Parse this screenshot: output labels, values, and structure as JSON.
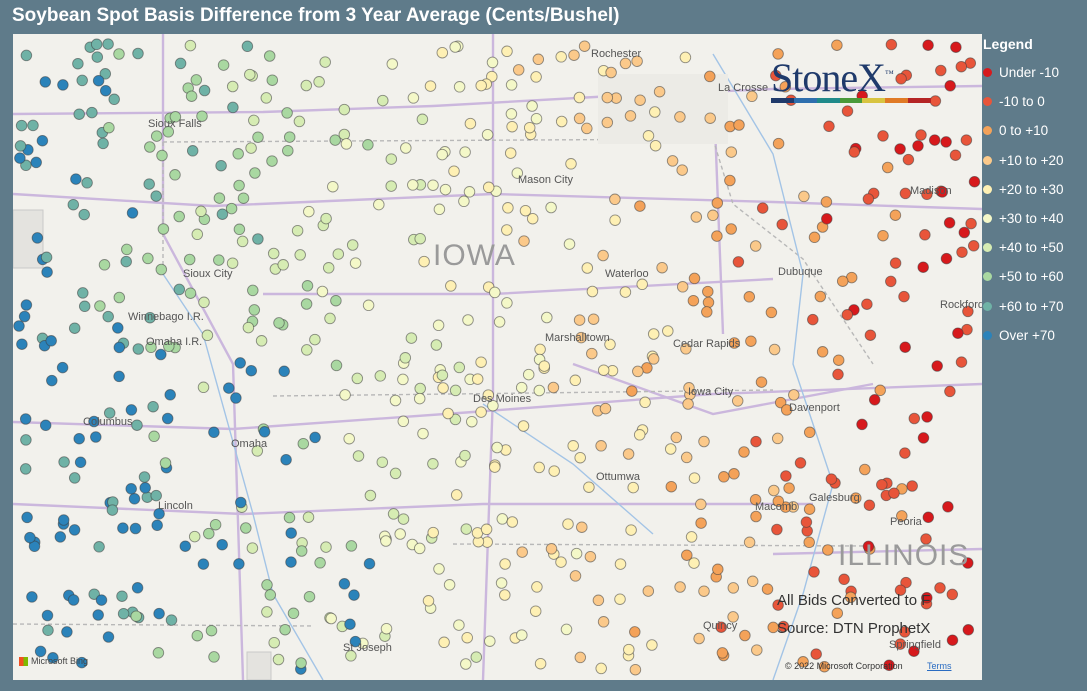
{
  "title": "Soybean Spot Basis Difference from 3 Year Average (Cents/Bushel)",
  "legend": {
    "title": "Legend",
    "items": [
      {
        "label": "Under -10",
        "color": "#d7191c"
      },
      {
        "label": "-10 to 0",
        "color": "#e8553a"
      },
      {
        "label": "0 to +10",
        "color": "#f4a259"
      },
      {
        "label": "+10 to +20",
        "color": "#fbc98a"
      },
      {
        "label": "+20 to +30",
        "color": "#fef0b4"
      },
      {
        "label": "+30 to +40",
        "color": "#f4f8c8"
      },
      {
        "label": "+40 to +50",
        "color": "#d6ecb3"
      },
      {
        "label": "+50 to +60",
        "color": "#a9d8a1"
      },
      {
        "label": "+60 to +70",
        "color": "#6fb2a6"
      },
      {
        "label": "Over +70",
        "color": "#2b83ba"
      }
    ]
  },
  "logo": {
    "text": "StoneX",
    "tm": "™",
    "bar_colors": [
      "#1f3a6b",
      "#2e6fae",
      "#1f8a8a",
      "#4a9a3a",
      "#d8c440",
      "#e07a25",
      "#b52525"
    ]
  },
  "map": {
    "state_labels": [
      "IOWA",
      "ILLINOIS"
    ],
    "city_labels": [
      "Rochester",
      "La Crosse",
      "Sioux Falls",
      "Mason City",
      "Madison",
      "Waterloo",
      "Dubuque",
      "Sioux City",
      "Rockford",
      "Winnebago I.R.",
      "Omaha I.R.",
      "Marshalltown",
      "Cedar Rapids",
      "Columbus",
      "Des Moines",
      "Iowa City",
      "Davenport",
      "Omaha",
      "Ottumwa",
      "Galesburg",
      "Lincoln",
      "Peoria",
      "Macomb",
      "St Joseph",
      "Quincy",
      "Springfield"
    ],
    "notes": [
      "All Bids Converted to F",
      "Source: DTN ProphetX"
    ],
    "bing": "Microsoft Bing",
    "copyright": "© 2022 Microsoft Corporation",
    "terms": "Terms"
  }
}
